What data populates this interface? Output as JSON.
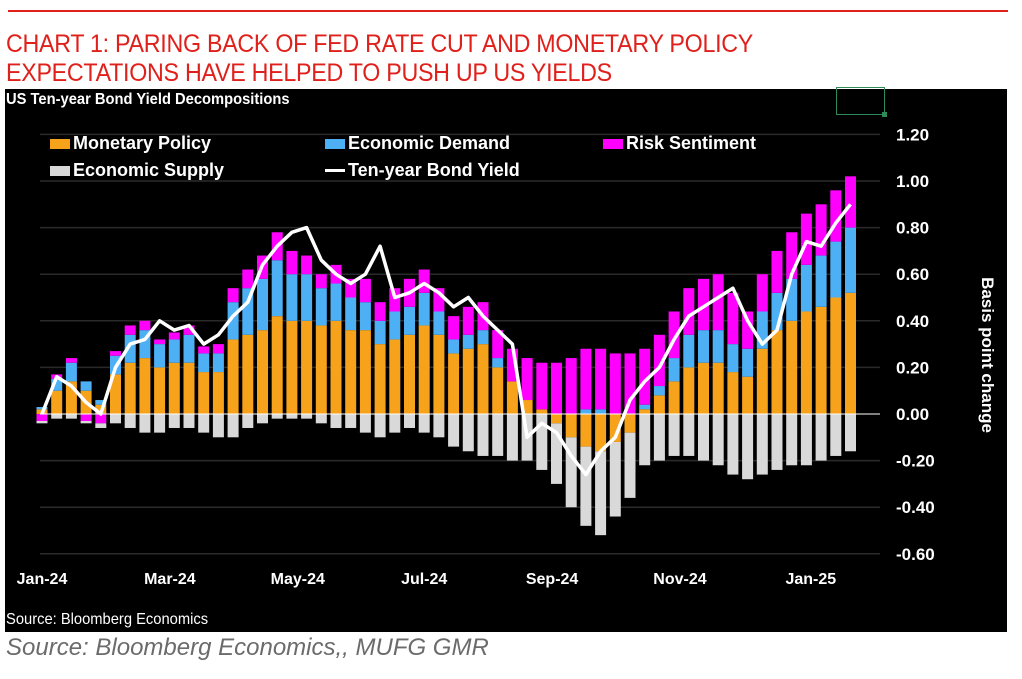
{
  "header": {
    "headline_lines": [
      "CHART 1: PARING BACK OF FED RATE CUT AND MONETARY POLICY",
      "EXPECTATIONS HAVE HELPED TO PUSH UP US YIELDS"
    ]
  },
  "footer": {
    "inner_source": "Source: Bloomberg Economics",
    "outer_source": "Source: Bloomberg Economics,, MUFG GMR"
  },
  "colors": {
    "headline": "#e0201b",
    "background": "#000000",
    "monetary_policy": "#f7a21b",
    "economic_demand": "#4db0f5",
    "risk_sentiment": "#ff00ff",
    "economic_supply": "#d9d9d9",
    "yield_line": "#ffffff",
    "gridline": "#2a2a2a"
  },
  "chart_data": {
    "type": "bar",
    "stacked": true,
    "title": "US Ten-year Bond Yield Decompositions",
    "xlabel": "",
    "ylabel": "Basis point change",
    "ylim": [
      -0.6,
      1.2
    ],
    "yticks": [
      "1.20",
      "1.00",
      "0.80",
      "0.60",
      "0.40",
      "0.20",
      "0.00",
      "-0.20",
      "-0.40",
      "-0.60"
    ],
    "ytick_values": [
      1.2,
      1.0,
      0.8,
      0.6,
      0.4,
      0.2,
      0.0,
      -0.2,
      -0.4,
      -0.6
    ],
    "xtick_labels": [
      "Jan-24",
      "Mar-24",
      "May-24",
      "Jul-24",
      "Sep-24",
      "Nov-24",
      "Jan-25"
    ],
    "xtick_week_index": [
      0,
      8.7,
      17.4,
      26,
      34.7,
      43.4,
      52.3
    ],
    "grid": true,
    "legend_position": "top-left",
    "legend": [
      {
        "name": "Monetary Policy",
        "kind": "bar"
      },
      {
        "name": "Economic Demand",
        "kind": "bar"
      },
      {
        "name": "Risk Sentiment",
        "kind": "bar"
      },
      {
        "name": "Economic Supply",
        "kind": "bar"
      },
      {
        "name": "Ten-year Bond Yield",
        "kind": "line"
      }
    ],
    "x_unit": "week starting Jan-24",
    "series": [
      {
        "name": "Monetary Policy",
        "values": [
          0.02,
          0.1,
          0.14,
          0.1,
          0.04,
          0.17,
          0.22,
          0.24,
          0.2,
          0.22,
          0.22,
          0.18,
          0.18,
          0.32,
          0.34,
          0.36,
          0.42,
          0.4,
          0.4,
          0.38,
          0.4,
          0.36,
          0.36,
          0.3,
          0.32,
          0.34,
          0.38,
          0.34,
          0.26,
          0.28,
          0.3,
          0.2,
          0.14,
          0.06,
          0.02,
          -0.04,
          -0.1,
          -0.14,
          -0.16,
          -0.12,
          -0.08,
          0.02,
          0.08,
          0.14,
          0.2,
          0.22,
          0.22,
          0.18,
          0.16,
          0.28,
          0.36,
          0.4,
          0.44,
          0.46,
          0.5,
          0.52
        ]
      },
      {
        "name": "Economic Demand",
        "values": [
          0.01,
          0.05,
          0.08,
          0.04,
          0.02,
          0.08,
          0.12,
          0.12,
          0.1,
          0.1,
          0.12,
          0.08,
          0.08,
          0.16,
          0.2,
          0.22,
          0.24,
          0.2,
          0.2,
          0.16,
          0.16,
          0.14,
          0.12,
          0.1,
          0.12,
          0.12,
          0.14,
          0.1,
          0.06,
          0.06,
          0.06,
          0.04,
          0.0,
          0.0,
          0.0,
          0.0,
          0.0,
          0.02,
          0.02,
          0.0,
          0.0,
          0.02,
          0.04,
          0.1,
          0.14,
          0.14,
          0.14,
          0.12,
          0.12,
          0.16,
          0.16,
          0.18,
          0.2,
          0.22,
          0.24,
          0.28
        ]
      },
      {
        "name": "Risk Sentiment",
        "values": [
          -0.03,
          0.02,
          0.02,
          -0.03,
          -0.04,
          0.02,
          0.04,
          0.04,
          0.02,
          0.03,
          0.04,
          0.03,
          0.04,
          0.06,
          0.08,
          0.1,
          0.12,
          0.1,
          0.08,
          0.06,
          0.08,
          0.08,
          0.1,
          0.08,
          0.1,
          0.12,
          0.1,
          0.1,
          0.1,
          0.12,
          0.12,
          0.12,
          0.14,
          0.18,
          0.2,
          0.22,
          0.24,
          0.26,
          0.26,
          0.26,
          0.26,
          0.24,
          0.22,
          0.2,
          0.2,
          0.22,
          0.24,
          0.22,
          0.16,
          0.16,
          0.18,
          0.2,
          0.22,
          0.22,
          0.22,
          0.22
        ]
      },
      {
        "name": "Economic Supply",
        "values": [
          -0.01,
          -0.02,
          -0.02,
          -0.01,
          -0.02,
          -0.04,
          -0.06,
          -0.08,
          -0.08,
          -0.06,
          -0.06,
          -0.08,
          -0.1,
          -0.1,
          -0.06,
          -0.04,
          -0.02,
          -0.02,
          -0.02,
          -0.04,
          -0.06,
          -0.06,
          -0.08,
          -0.1,
          -0.08,
          -0.06,
          -0.08,
          -0.1,
          -0.14,
          -0.16,
          -0.18,
          -0.18,
          -0.2,
          -0.2,
          -0.24,
          -0.26,
          -0.3,
          -0.34,
          -0.36,
          -0.32,
          -0.28,
          -0.22,
          -0.2,
          -0.18,
          -0.18,
          -0.2,
          -0.22,
          -0.26,
          -0.28,
          -0.26,
          -0.24,
          -0.22,
          -0.22,
          -0.2,
          -0.18,
          -0.16
        ]
      },
      {
        "name": "Ten-year Bond Yield",
        "kind": "line",
        "values": [
          0.0,
          0.16,
          0.12,
          0.05,
          0.0,
          0.2,
          0.3,
          0.32,
          0.4,
          0.36,
          0.38,
          0.3,
          0.34,
          0.42,
          0.48,
          0.64,
          0.72,
          0.78,
          0.8,
          0.66,
          0.6,
          0.56,
          0.6,
          0.72,
          0.5,
          0.52,
          0.56,
          0.52,
          0.46,
          0.5,
          0.42,
          0.36,
          0.3,
          -0.1,
          -0.04,
          -0.08,
          -0.18,
          -0.26,
          -0.16,
          -0.1,
          0.06,
          0.14,
          0.2,
          0.32,
          0.42,
          0.46,
          0.5,
          0.54,
          0.4,
          0.3,
          0.36,
          0.6,
          0.74,
          0.72,
          0.82,
          0.9
        ]
      }
    ]
  }
}
